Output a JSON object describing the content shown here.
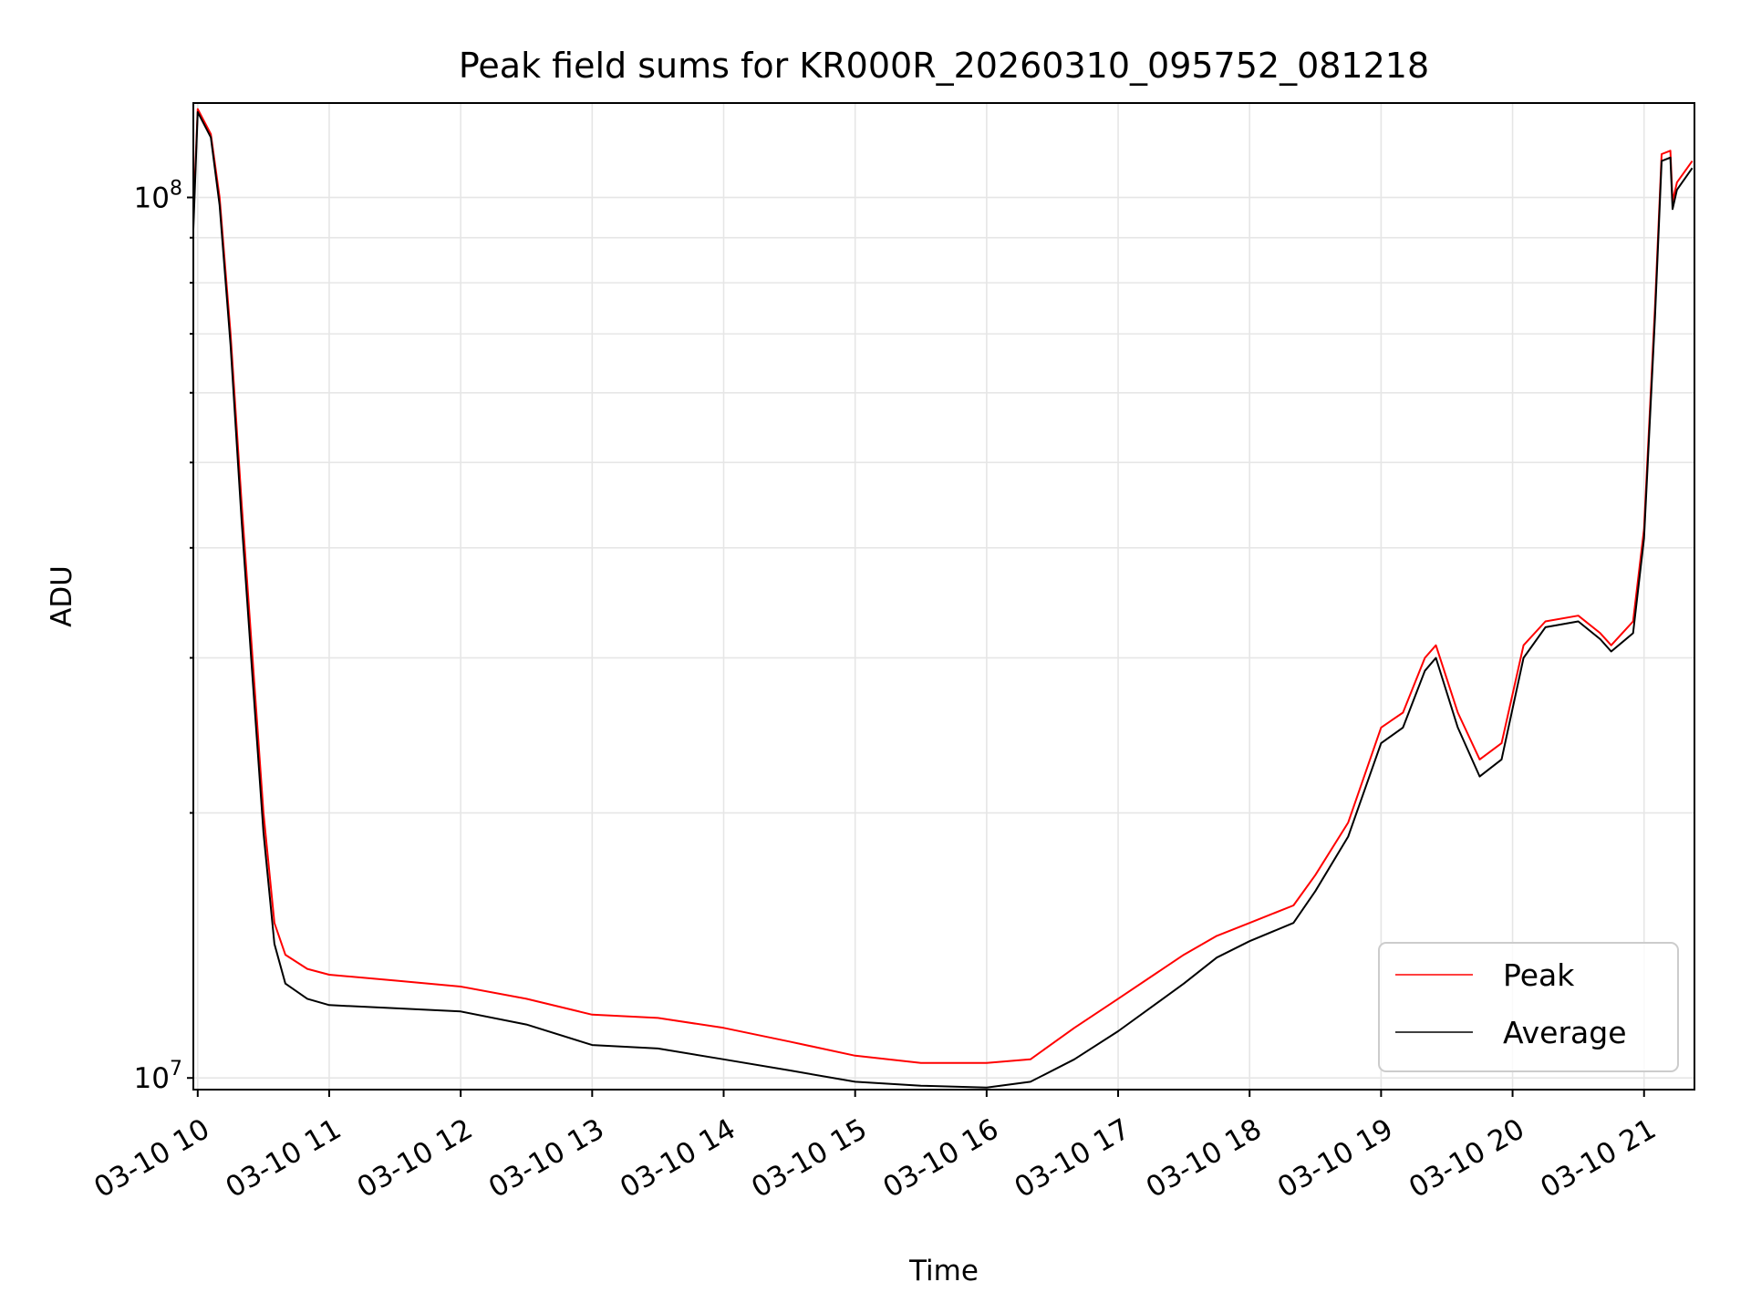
{
  "chart_data": {
    "type": "line",
    "title": "Peak field sums for KR000R_20260310_095752_081218",
    "xlabel": "Time",
    "ylabel": "ADU",
    "x_scale": "time",
    "y_scale": "log",
    "xlim": [
      "2026-03-10 09:58",
      "2026-03-10 21:23"
    ],
    "ylim": [
      9700000,
      128000000
    ],
    "x_tick_labels": [
      "03-10 10",
      "03-10 11",
      "03-10 12",
      "03-10 13",
      "03-10 14",
      "03-10 15",
      "03-10 16",
      "03-10 17",
      "03-10 18",
      "03-10 19",
      "03-10 20",
      "03-10 21"
    ],
    "y_tick_labels": [
      "10^8",
      "10^7"
    ],
    "grid": true,
    "legend_position": "bottom-right",
    "series": [
      {
        "name": "Peak",
        "color": "#ff0000",
        "points": [
          [
            "2026-03-10 09:58",
            95000000
          ],
          [
            "2026-03-10 10:00",
            126000000
          ],
          [
            "2026-03-10 10:06",
            118000000
          ],
          [
            "2026-03-10 10:10",
            100000000
          ],
          [
            "2026-03-10 10:15",
            70000000
          ],
          [
            "2026-03-10 10:20",
            45000000
          ],
          [
            "2026-03-10 10:25",
            30000000
          ],
          [
            "2026-03-10 10:30",
            20000000
          ],
          [
            "2026-03-10 10:35",
            15000000
          ],
          [
            "2026-03-10 10:40",
            13800000
          ],
          [
            "2026-03-10 10:50",
            13300000
          ],
          [
            "2026-03-10 11:00",
            13100000
          ],
          [
            "2026-03-10 11:30",
            12900000
          ],
          [
            "2026-03-10 12:00",
            12700000
          ],
          [
            "2026-03-10 12:30",
            12300000
          ],
          [
            "2026-03-10 13:00",
            11800000
          ],
          [
            "2026-03-10 13:30",
            11700000
          ],
          [
            "2026-03-10 14:00",
            11400000
          ],
          [
            "2026-03-10 14:30",
            11000000
          ],
          [
            "2026-03-10 15:00",
            10600000
          ],
          [
            "2026-03-10 15:30",
            10400000
          ],
          [
            "2026-03-10 16:00",
            10400000
          ],
          [
            "2026-03-10 16:20",
            10500000
          ],
          [
            "2026-03-10 16:40",
            11400000
          ],
          [
            "2026-03-10 17:00",
            12300000
          ],
          [
            "2026-03-10 17:30",
            13800000
          ],
          [
            "2026-03-10 17:45",
            14500000
          ],
          [
            "2026-03-10 18:00",
            15000000
          ],
          [
            "2026-03-10 18:20",
            15700000
          ],
          [
            "2026-03-10 18:30",
            17000000
          ],
          [
            "2026-03-10 18:45",
            19500000
          ],
          [
            "2026-03-10 19:00",
            25000000
          ],
          [
            "2026-03-10 19:10",
            26000000
          ],
          [
            "2026-03-10 19:20",
            30000000
          ],
          [
            "2026-03-10 19:25",
            31000000
          ],
          [
            "2026-03-10 19:35",
            26000000
          ],
          [
            "2026-03-10 19:45",
            23000000
          ],
          [
            "2026-03-10 19:55",
            24000000
          ],
          [
            "2026-03-10 20:05",
            31000000
          ],
          [
            "2026-03-10 20:15",
            33000000
          ],
          [
            "2026-03-10 20:30",
            33500000
          ],
          [
            "2026-03-10 20:40",
            32000000
          ],
          [
            "2026-03-10 20:45",
            31000000
          ],
          [
            "2026-03-10 20:55",
            33000000
          ],
          [
            "2026-03-10 21:00",
            42000000
          ],
          [
            "2026-03-10 21:05",
            75000000
          ],
          [
            "2026-03-10 21:08",
            112000000
          ],
          [
            "2026-03-10 21:12",
            113000000
          ],
          [
            "2026-03-10 21:13",
            99000000
          ],
          [
            "2026-03-10 21:15",
            104000000
          ],
          [
            "2026-03-10 21:22",
            110000000
          ]
        ]
      },
      {
        "name": "Average",
        "color": "#000000",
        "points": [
          [
            "2026-03-10 09:58",
            92000000
          ],
          [
            "2026-03-10 10:00",
            125000000
          ],
          [
            "2026-03-10 10:06",
            117000000
          ],
          [
            "2026-03-10 10:10",
            98000000
          ],
          [
            "2026-03-10 10:15",
            68000000
          ],
          [
            "2026-03-10 10:20",
            43000000
          ],
          [
            "2026-03-10 10:25",
            28500000
          ],
          [
            "2026-03-10 10:30",
            19000000
          ],
          [
            "2026-03-10 10:35",
            14200000
          ],
          [
            "2026-03-10 10:40",
            12800000
          ],
          [
            "2026-03-10 10:50",
            12300000
          ],
          [
            "2026-03-10 11:00",
            12100000
          ],
          [
            "2026-03-10 11:30",
            12000000
          ],
          [
            "2026-03-10 12:00",
            11900000
          ],
          [
            "2026-03-10 12:30",
            11500000
          ],
          [
            "2026-03-10 13:00",
            10900000
          ],
          [
            "2026-03-10 13:30",
            10800000
          ],
          [
            "2026-03-10 14:00",
            10500000
          ],
          [
            "2026-03-10 14:30",
            10200000
          ],
          [
            "2026-03-10 15:00",
            9900000
          ],
          [
            "2026-03-10 15:30",
            9800000
          ],
          [
            "2026-03-10 16:00",
            9750000
          ],
          [
            "2026-03-10 16:20",
            9900000
          ],
          [
            "2026-03-10 16:40",
            10500000
          ],
          [
            "2026-03-10 17:00",
            11300000
          ],
          [
            "2026-03-10 17:30",
            12800000
          ],
          [
            "2026-03-10 17:45",
            13700000
          ],
          [
            "2026-03-10 18:00",
            14300000
          ],
          [
            "2026-03-10 18:20",
            15000000
          ],
          [
            "2026-03-10 18:30",
            16300000
          ],
          [
            "2026-03-10 18:45",
            18800000
          ],
          [
            "2026-03-10 19:00",
            24000000
          ],
          [
            "2026-03-10 19:10",
            25000000
          ],
          [
            "2026-03-10 19:20",
            29000000
          ],
          [
            "2026-03-10 19:25",
            30000000
          ],
          [
            "2026-03-10 19:35",
            25000000
          ],
          [
            "2026-03-10 19:45",
            22000000
          ],
          [
            "2026-03-10 19:55",
            23000000
          ],
          [
            "2026-03-10 20:05",
            30000000
          ],
          [
            "2026-03-10 20:15",
            32500000
          ],
          [
            "2026-03-10 20:30",
            33000000
          ],
          [
            "2026-03-10 20:40",
            31500000
          ],
          [
            "2026-03-10 20:45",
            30500000
          ],
          [
            "2026-03-10 20:55",
            32000000
          ],
          [
            "2026-03-10 21:00",
            41000000
          ],
          [
            "2026-03-10 21:05",
            73000000
          ],
          [
            "2026-03-10 21:08",
            110000000
          ],
          [
            "2026-03-10 21:12",
            111000000
          ],
          [
            "2026-03-10 21:13",
            97000000
          ],
          [
            "2026-03-10 21:15",
            102000000
          ],
          [
            "2026-03-10 21:22",
            108000000
          ]
        ]
      }
    ]
  }
}
